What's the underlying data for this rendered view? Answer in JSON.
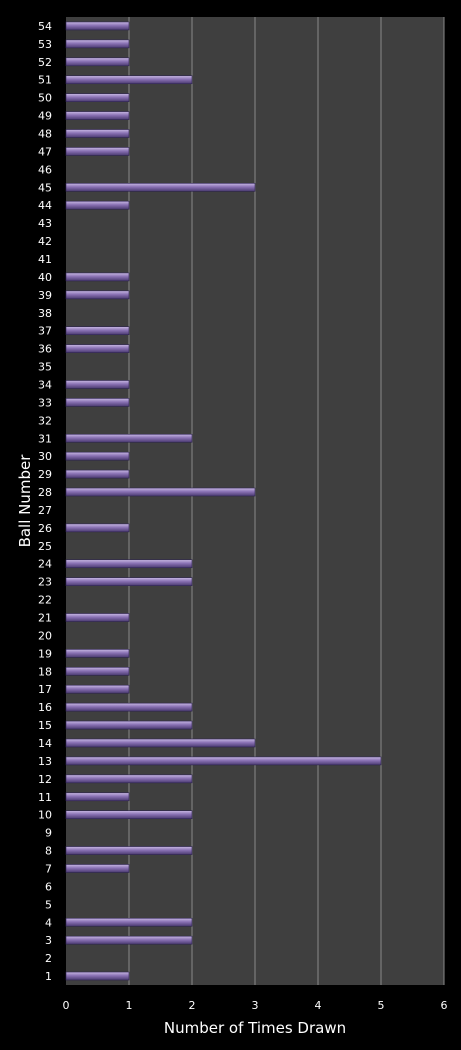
{
  "chart_data": {
    "type": "bar",
    "orientation": "horizontal",
    "title": "",
    "xlabel": "Number of Times Drawn",
    "ylabel": "Ball Number",
    "xlim": [
      0,
      6
    ],
    "xticks": [
      "0",
      "1",
      "2",
      "3",
      "4",
      "5",
      "6"
    ],
    "grid": "vertical",
    "legend": "none",
    "categories": [
      "1",
      "2",
      "3",
      "4",
      "5",
      "6",
      "7",
      "8",
      "9",
      "10",
      "11",
      "12",
      "13",
      "14",
      "15",
      "16",
      "17",
      "18",
      "19",
      "20",
      "21",
      "22",
      "23",
      "24",
      "25",
      "26",
      "27",
      "28",
      "29",
      "30",
      "31",
      "32",
      "33",
      "34",
      "35",
      "36",
      "37",
      "38",
      "39",
      "40",
      "41",
      "42",
      "43",
      "44",
      "45",
      "46",
      "47",
      "48",
      "49",
      "50",
      "51",
      "52",
      "53",
      "54"
    ],
    "values": [
      1,
      0,
      2,
      2,
      0,
      0,
      1,
      2,
      0,
      2,
      1,
      2,
      5,
      3,
      2,
      2,
      1,
      1,
      1,
      0,
      1,
      0,
      2,
      2,
      0,
      1,
      0,
      3,
      1,
      1,
      2,
      0,
      1,
      1,
      0,
      1,
      1,
      0,
      1,
      1,
      0,
      0,
      0,
      1,
      3,
      0,
      1,
      1,
      1,
      1,
      2,
      1,
      1,
      1
    ],
    "colors": {
      "background": "#000000",
      "plot_area": "#3f3f3f",
      "gridline": "#8a8a8a",
      "bar_fill": "#8a72b4",
      "bar_highlight": "#c8b8e4",
      "bar_shadow": "#4a3a70",
      "text": "#ffffff"
    }
  }
}
